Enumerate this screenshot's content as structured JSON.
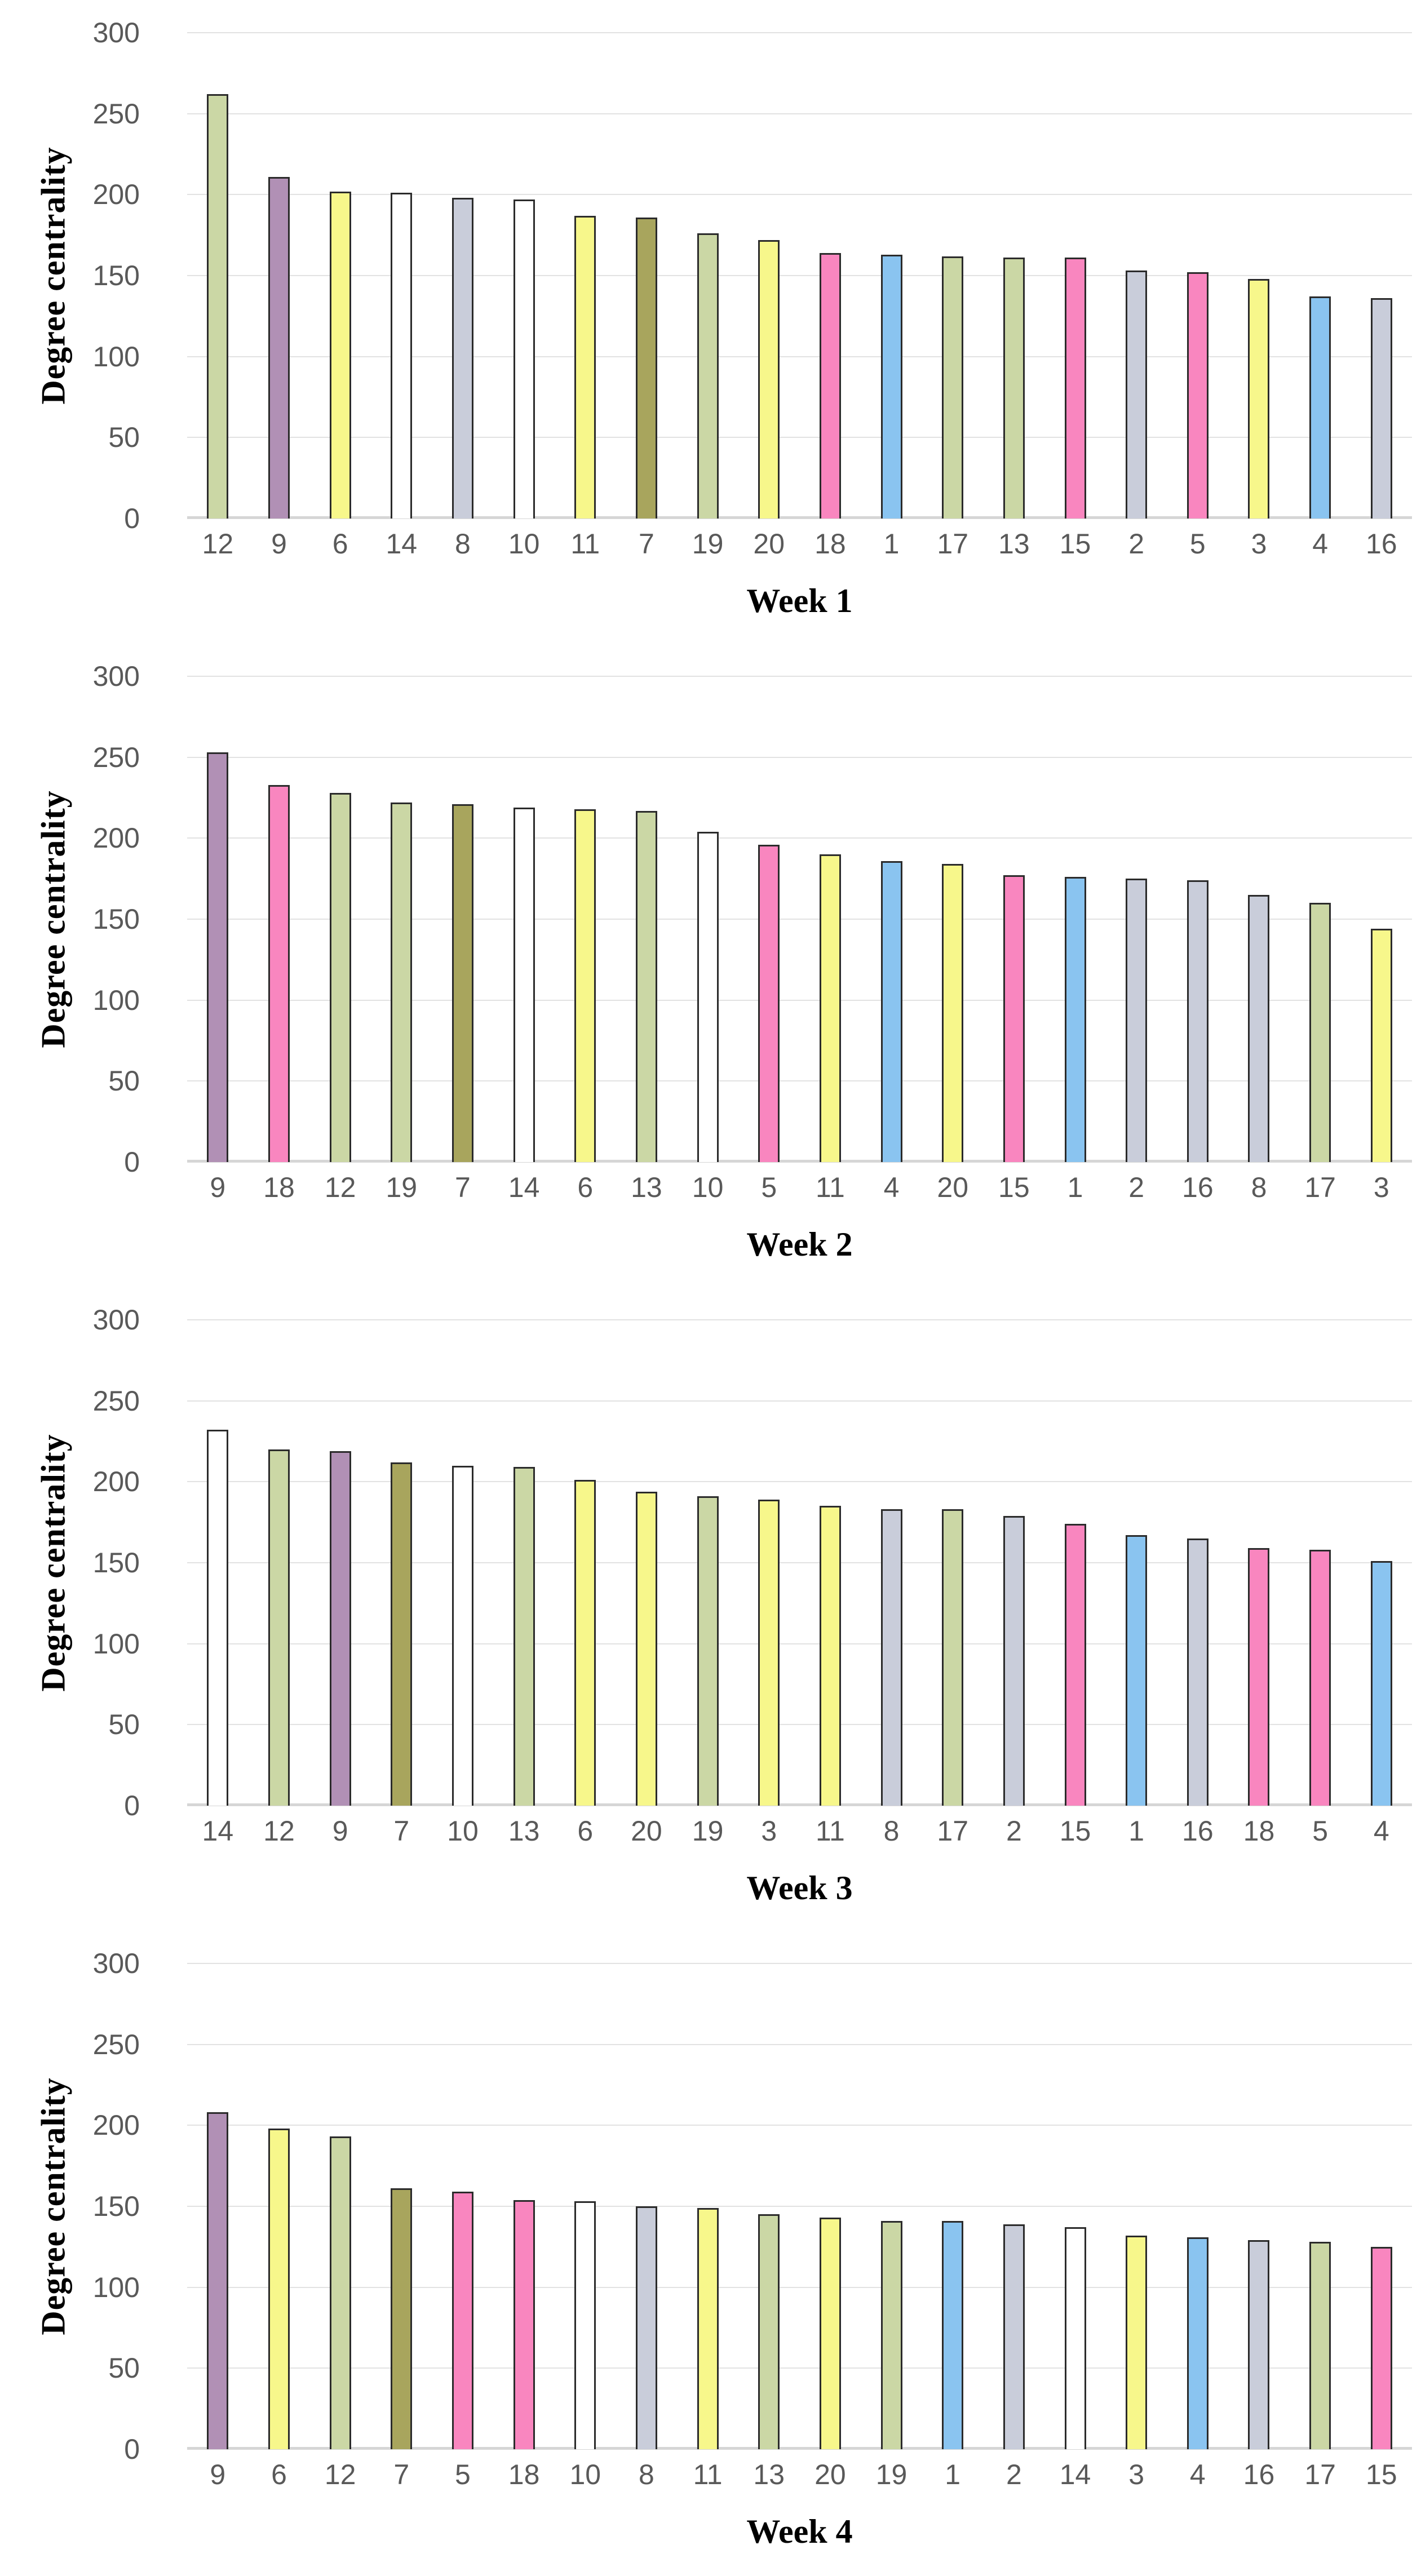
{
  "axis": {
    "ticks": [
      0,
      50,
      100,
      150,
      200,
      250,
      300
    ],
    "max": 300
  },
  "colors": {
    "bar_border": "#2b2b2b",
    "gridline": "#e2e2e2",
    "baseline": "#d6d6d6",
    "tick_text": "#595959",
    "title_text": "#000000"
  },
  "node_colors": {
    "1": "#8ac4f0",
    "2": "#c9cdda",
    "3": "#f7f78b",
    "4": "#8ac4f0",
    "5": "#f986bf",
    "6": "#f7f78b",
    "7": "#a8a55d",
    "8": "#c9cdda",
    "9": "#b190b5",
    "10": "#ffffff",
    "11": "#f7f78b",
    "12": "#cbd7a5",
    "13": "#cbd7a5",
    "14": "#ffffff",
    "15": "#f986bf",
    "16": "#c9cdda",
    "17": "#cbd7a5",
    "18": "#f986bf",
    "19": "#cbd7a5",
    "20": "#f7f78b"
  },
  "chart_data": [
    {
      "type": "bar",
      "title": "Week 1",
      "ylabel": "Degree centrality",
      "xlabel": "",
      "ylim": [
        0,
        300
      ],
      "grid": true,
      "categories": [
        "12",
        "9",
        "6",
        "14",
        "8",
        "10",
        "11",
        "7",
        "19",
        "20",
        "18",
        "1",
        "17",
        "13",
        "15",
        "2",
        "5",
        "3",
        "4",
        "16"
      ],
      "values": [
        262,
        211,
        202,
        201,
        198,
        197,
        187,
        186,
        176,
        172,
        164,
        163,
        162,
        161,
        161,
        153,
        152,
        148,
        137,
        136
      ]
    },
    {
      "type": "bar",
      "title": "Week 2",
      "ylabel": "Degree centrality",
      "xlabel": "",
      "ylim": [
        0,
        300
      ],
      "grid": true,
      "categories": [
        "9",
        "18",
        "12",
        "19",
        "7",
        "14",
        "6",
        "13",
        "10",
        "5",
        "11",
        "4",
        "20",
        "15",
        "1",
        "2",
        "16",
        "8",
        "17",
        "3"
      ],
      "values": [
        253,
        233,
        228,
        222,
        221,
        219,
        218,
        217,
        204,
        196,
        190,
        186,
        184,
        177,
        176,
        175,
        174,
        165,
        160,
        144
      ]
    },
    {
      "type": "bar",
      "title": "Week 3",
      "ylabel": "Degree centrality",
      "xlabel": "",
      "ylim": [
        0,
        300
      ],
      "grid": true,
      "categories": [
        "14",
        "12",
        "9",
        "7",
        "10",
        "13",
        "6",
        "20",
        "19",
        "3",
        "11",
        "8",
        "17",
        "2",
        "15",
        "1",
        "16",
        "18",
        "5",
        "4"
      ],
      "values": [
        232,
        220,
        219,
        212,
        210,
        209,
        201,
        194,
        191,
        189,
        185,
        183,
        183,
        179,
        174,
        167,
        165,
        159,
        158,
        151
      ]
    },
    {
      "type": "bar",
      "title": "Week 4",
      "ylabel": "Degree centrality",
      "xlabel": "",
      "ylim": [
        0,
        300
      ],
      "grid": true,
      "categories": [
        "9",
        "6",
        "12",
        "7",
        "5",
        "18",
        "10",
        "8",
        "11",
        "13",
        "20",
        "19",
        "1",
        "2",
        "14",
        "3",
        "4",
        "16",
        "17",
        "15"
      ],
      "values": [
        208,
        198,
        193,
        161,
        159,
        154,
        153,
        150,
        149,
        145,
        143,
        141,
        141,
        139,
        137,
        132,
        131,
        129,
        128,
        125
      ]
    }
  ]
}
